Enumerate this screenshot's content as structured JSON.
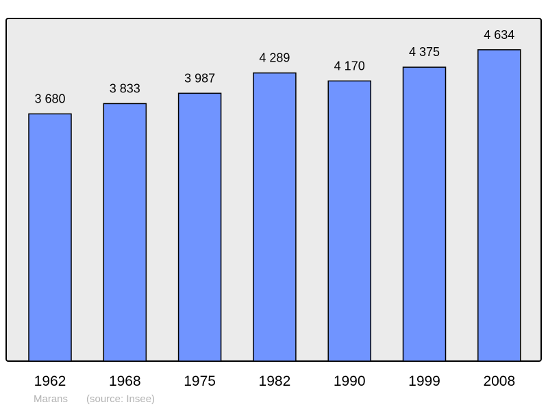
{
  "chart_data": {
    "type": "bar",
    "categories": [
      "1962",
      "1968",
      "1975",
      "1982",
      "1990",
      "1999",
      "2008"
    ],
    "values": [
      3680,
      3833,
      3987,
      4289,
      4170,
      4375,
      4634
    ],
    "value_labels": [
      "3 680",
      "3 833",
      "3 987",
      "4 289",
      "4 170",
      "4 375",
      "4 634"
    ],
    "title": "",
    "xlabel": "",
    "ylabel": "",
    "ylim": [
      0,
      5100
    ],
    "grid": false,
    "bar_color": "#7094ff",
    "background_color": "#ebebeb"
  },
  "footer": {
    "place": "Marans",
    "source": "(source: Insee)"
  }
}
